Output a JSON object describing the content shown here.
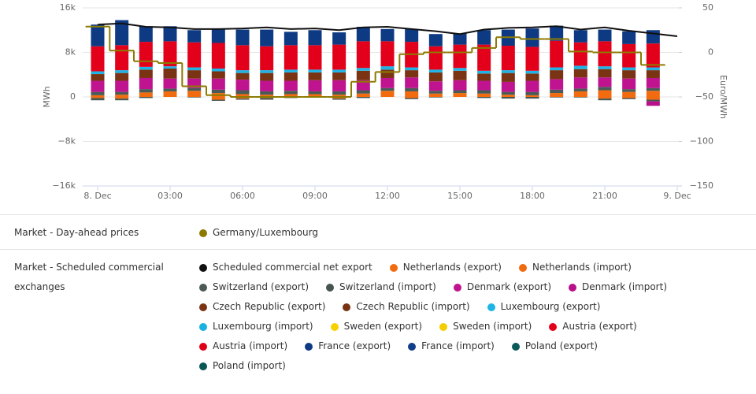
{
  "chart_data": {
    "type": "bar",
    "y_label": "MWh",
    "y2_label": "Euro/MWh",
    "x": [
      0,
      1,
      2,
      3,
      4,
      5,
      6,
      7,
      8,
      9,
      10,
      11,
      12,
      13,
      14,
      15,
      16,
      17,
      18,
      19,
      20,
      21,
      22,
      23,
      24
    ],
    "xlim": [
      -0.5,
      24
    ],
    "xticks": [
      {
        "value": 0,
        "label": "8. Dec"
      },
      {
        "value": 3,
        "label": "03:00"
      },
      {
        "value": 6,
        "label": "06:00"
      },
      {
        "value": 9,
        "label": "09:00"
      },
      {
        "value": 12,
        "label": "12:00"
      },
      {
        "value": 15,
        "label": "15:00"
      },
      {
        "value": 18,
        "label": "18:00"
      },
      {
        "value": 21,
        "label": "21:00"
      },
      {
        "value": 24,
        "label": "9. Dec"
      }
    ],
    "ylim": [
      -16000,
      16000
    ],
    "yticks": [
      {
        "value": -16000,
        "label": "−16k"
      },
      {
        "value": -8000,
        "label": "−8k"
      },
      0,
      {
        "value": 8000,
        "label": "8k"
      },
      {
        "value": 16000,
        "label": "16k"
      }
    ],
    "y2lim": [
      -150,
      50
    ],
    "y2ticks": [
      {
        "value": -150,
        "label": "−150"
      },
      {
        "value": -100,
        "label": "−100"
      },
      {
        "value": -50,
        "label": "−50"
      },
      0,
      50
    ],
    "grid": true,
    "legend_titles": [
      "Market - Day-ahead prices",
      "Market - Scheduled commercial exchanges"
    ],
    "series": [
      {
        "name": "Germany/Luxembourg",
        "type": "step",
        "axis": "y2",
        "color": "#8c7a00",
        "values": [
          29,
          2,
          -10,
          -12,
          -38,
          -48,
          -50,
          -50,
          -50,
          -50,
          -50,
          -33,
          -22,
          -2,
          0,
          0,
          5,
          17,
          15,
          15,
          1,
          0,
          0,
          -14,
          null
        ]
      },
      {
        "name": "Scheduled commercial net export",
        "type": "line",
        "color": "#111111",
        "values": [
          13000,
          13200,
          12600,
          12500,
          12200,
          12200,
          12300,
          12500,
          12200,
          12300,
          12000,
          12500,
          12600,
          12200,
          11800,
          11300,
          12100,
          12400,
          12500,
          12700,
          12100,
          12500,
          11900,
          11400,
          10900
        ]
      },
      {
        "name": "Netherlands (export)",
        "type": "bar",
        "color": "#f26c0f",
        "values": [
          300,
          400,
          800,
          1000,
          1100,
          700,
          500,
          400,
          500,
          500,
          400,
          600,
          1100,
          1000,
          600,
          700,
          600,
          400,
          300,
          700,
          1000,
          1200,
          900,
          1100,
          null
        ]
      },
      {
        "name": "Netherlands (import)",
        "type": "bar",
        "color": "#f06a10",
        "values": [
          -200,
          -300,
          0,
          0,
          0,
          -500,
          -300,
          -200,
          0,
          0,
          -300,
          0,
          0,
          -200,
          0,
          0,
          0,
          0,
          0,
          0,
          0,
          -300,
          -200,
          -500,
          null
        ]
      },
      {
        "name": "Switzerland (export)",
        "type": "bar",
        "color": "#4b5a56",
        "values": [
          600,
          500,
          600,
          500,
          500,
          600,
          700,
          600,
          600,
          500,
          600,
          600,
          500,
          600,
          500,
          500,
          600,
          500,
          600,
          600,
          500,
          600,
          500,
          500,
          null
        ]
      },
      {
        "name": "Switzerland (import)",
        "type": "bar",
        "color": "#465550",
        "values": [
          -400,
          -300,
          -200,
          0,
          -100,
          -200,
          -200,
          -300,
          -200,
          -100,
          -200,
          -200,
          0,
          -200,
          -100,
          0,
          -200,
          -300,
          -300,
          -100,
          -100,
          -300,
          -200,
          -300,
          null
        ]
      },
      {
        "name": "Denmark (export)",
        "type": "bar",
        "color": "#c0138f",
        "values": [
          2000,
          2000,
          2000,
          1800,
          1700,
          2000,
          1900,
          1900,
          1800,
          2000,
          2000,
          1800,
          1800,
          1900,
          1700,
          1800,
          1700,
          1800,
          2000,
          1900,
          2000,
          1700,
          1900,
          1800,
          null
        ]
      },
      {
        "name": "Denmark (import)",
        "type": "bar",
        "color": "#b8108a",
        "values": [
          0,
          0,
          0,
          0,
          0,
          0,
          0,
          0,
          0,
          0,
          0,
          0,
          0,
          0,
          0,
          0,
          0,
          0,
          0,
          0,
          0,
          0,
          0,
          -800,
          null
        ]
      },
      {
        "name": "Czech Republic (export)",
        "type": "bar",
        "color": "#7b3413",
        "values": [
          1200,
          1400,
          1500,
          1800,
          1500,
          1300,
          1200,
          1400,
          1500,
          1400,
          1400,
          1700,
          1500,
          1300,
          1600,
          1700,
          1300,
          1600,
          1300,
          1600,
          1500,
          1500,
          1500,
          1400,
          null
        ]
      },
      {
        "name": "Czech Republic (import)",
        "type": "bar",
        "color": "#763211",
        "values": [
          0,
          0,
          0,
          0,
          0,
          0,
          0,
          0,
          0,
          0,
          0,
          0,
          0,
          0,
          0,
          0,
          0,
          0,
          0,
          0,
          0,
          0,
          0,
          0,
          null
        ]
      },
      {
        "name": "Luxembourg (export)",
        "type": "bar",
        "color": "#1fb4e5",
        "values": [
          500,
          500,
          500,
          400,
          500,
          500,
          500,
          500,
          500,
          500,
          500,
          500,
          600,
          500,
          500,
          500,
          500,
          500,
          500,
          500,
          600,
          500,
          500,
          500,
          null
        ]
      },
      {
        "name": "Luxembourg (import)",
        "type": "bar",
        "color": "#1ab0e0",
        "values": [
          0,
          0,
          0,
          0,
          0,
          0,
          0,
          0,
          0,
          0,
          0,
          0,
          0,
          0,
          0,
          0,
          0,
          0,
          0,
          0,
          0,
          0,
          0,
          0,
          null
        ]
      },
      {
        "name": "Sweden (export)",
        "type": "bar",
        "color": "#f7d000",
        "values": [
          0,
          0,
          0,
          0,
          0,
          0,
          0,
          0,
          0,
          0,
          0,
          0,
          0,
          0,
          0,
          0,
          0,
          0,
          0,
          0,
          0,
          0,
          0,
          0,
          null
        ]
      },
      {
        "name": "Sweden (import)",
        "type": "bar",
        "color": "#f5cc00",
        "values": [
          0,
          0,
          0,
          0,
          0,
          0,
          0,
          0,
          0,
          0,
          0,
          0,
          0,
          0,
          0,
          0,
          0,
          0,
          0,
          0,
          0,
          0,
          0,
          0,
          null
        ]
      },
      {
        "name": "Austria (export)",
        "type": "bar",
        "color": "#e3001a",
        "values": [
          4500,
          4500,
          4500,
          4500,
          4500,
          4600,
          4500,
          4300,
          4400,
          4400,
          4500,
          4800,
          4500,
          4600,
          4200,
          4200,
          4700,
          4400,
          4300,
          4800,
          4200,
          4500,
          4200,
          4300,
          null
        ]
      },
      {
        "name": "Austria (import)",
        "type": "bar",
        "color": "#df0018",
        "values": [
          0,
          0,
          0,
          0,
          0,
          0,
          0,
          0,
          0,
          0,
          0,
          0,
          0,
          0,
          0,
          0,
          0,
          0,
          0,
          0,
          0,
          0,
          0,
          0,
          null
        ]
      },
      {
        "name": "France (export)",
        "type": "bar",
        "color": "#0e3a84",
        "values": [
          3900,
          4500,
          2800,
          2700,
          2200,
          2500,
          2800,
          3000,
          2400,
          2700,
          2200,
          2600,
          2200,
          2300,
          2200,
          2000,
          2600,
          2900,
          3300,
          2700,
          2200,
          2100,
          2300,
          2400,
          null
        ]
      },
      {
        "name": "France (import)",
        "type": "bar",
        "color": "#123f8a",
        "values": [
          0,
          0,
          0,
          0,
          0,
          0,
          0,
          0,
          0,
          0,
          0,
          0,
          0,
          0,
          0,
          0,
          0,
          0,
          0,
          0,
          0,
          0,
          0,
          0,
          null
        ]
      },
      {
        "name": "Poland (export)",
        "type": "bar",
        "color": "#0b5a5a",
        "values": [
          0,
          0,
          0,
          0,
          0,
          0,
          0,
          0,
          0,
          0,
          0,
          0,
          0,
          0,
          0,
          0,
          0,
          0,
          0,
          0,
          0,
          0,
          0,
          0,
          null
        ]
      },
      {
        "name": "Poland (import)",
        "type": "bar",
        "color": "#0a5555",
        "values": [
          0,
          0,
          0,
          0,
          0,
          0,
          0,
          0,
          0,
          0,
          0,
          0,
          0,
          0,
          0,
          0,
          0,
          0,
          0,
          0,
          0,
          0,
          0,
          0,
          null
        ]
      }
    ]
  }
}
